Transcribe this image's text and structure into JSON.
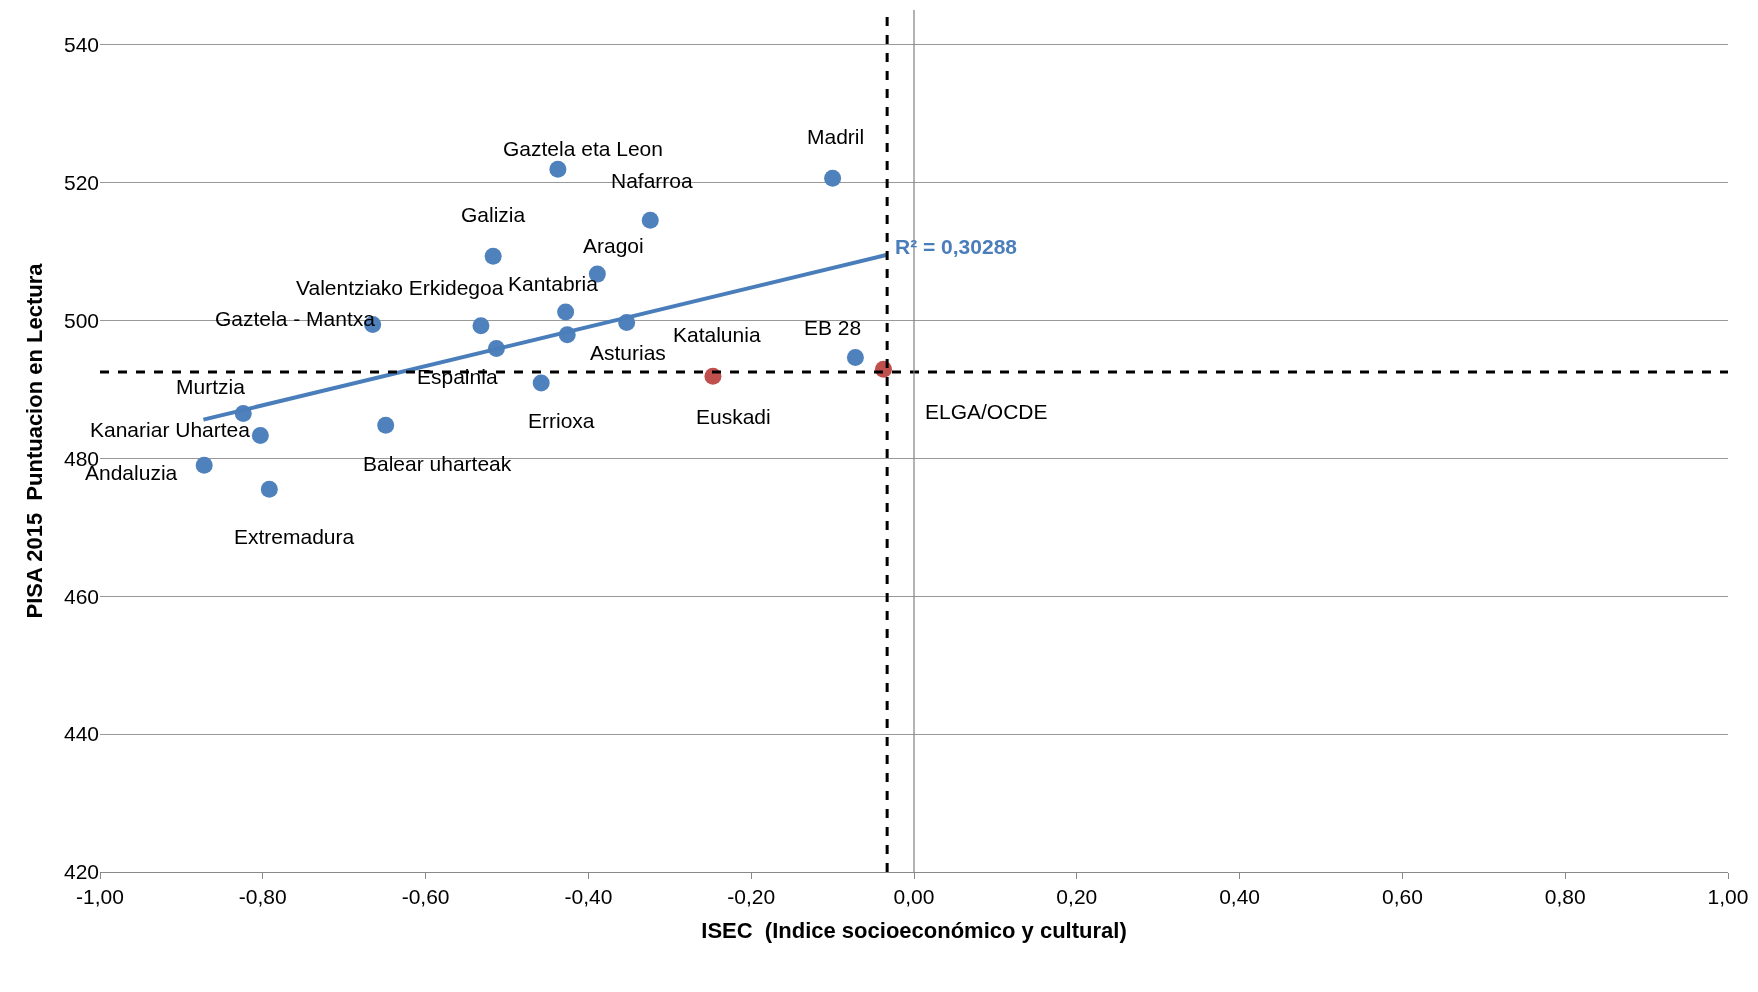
{
  "chart_data": {
    "type": "scatter",
    "xlabel": "ISEC  (Indice socioeconómico y cultural)",
    "ylabel": "PISA 2015  Puntuacion en Lectura",
    "xlim": [
      -1,
      1
    ],
    "xticks": [
      {
        "value": -1,
        "label": "-1,00"
      },
      {
        "value": -0.8,
        "label": "-0,80"
      },
      {
        "value": -0.6,
        "label": "-0,60"
      },
      {
        "value": -0.4,
        "label": "-0,40"
      },
      {
        "value": -0.2,
        "label": "-0,20"
      },
      {
        "value": 0,
        "label": "0,00"
      },
      {
        "value": 0.2,
        "label": "0,20"
      },
      {
        "value": 0.4,
        "label": "0,40"
      },
      {
        "value": 0.6,
        "label": "0,60"
      },
      {
        "value": 0.8,
        "label": "0,80"
      },
      {
        "value": 1,
        "label": "1,00"
      }
    ],
    "ylim": [
      420,
      545
    ],
    "yticks": [
      420,
      440,
      460,
      480,
      500,
      520,
      540
    ],
    "grid": "y",
    "marker": "circle",
    "series": [
      {
        "x": [
          -0.872,
          -0.792,
          -0.803,
          -0.824,
          -0.665,
          -0.649,
          -0.532,
          -0.513,
          -0.517,
          -0.4375,
          -0.458,
          -0.428,
          -0.426,
          -0.389,
          -0.324,
          -0.353,
          -0.247,
          -0.1,
          -0.072,
          -0.0375
        ],
        "values": [
          479.0,
          475.5,
          483.3,
          486.5,
          499.4,
          484.8,
          499.2,
          495.9,
          509.3,
          521.9,
          490.9,
          501.2,
          497.9,
          506.7,
          514.5,
          499.7,
          491.9,
          520.6,
          494.6,
          492.9
        ],
        "colors": [
          "#4f81bd",
          "#4f81bd",
          "#4f81bd",
          "#4f81bd",
          "#4f81bd",
          "#4f81bd",
          "#4f81bd",
          "#4f81bd",
          "#4f81bd",
          "#4f81bd",
          "#4f81bd",
          "#4f81bd",
          "#4f81bd",
          "#4f81bd",
          "#4f81bd",
          "#4f81bd",
          "#c0504d",
          "#4f81bd",
          "#4f81bd",
          "#c0504d"
        ]
      },
      {
        "type": "line",
        "x": [
          -0.873,
          -0.033
        ],
        "values": [
          485.6,
          509.5
        ],
        "color": "#4a7ebb",
        "marker": "none"
      }
    ],
    "ref_lines": [
      {
        "axis": "x",
        "value": -0.033,
        "color": "#000000",
        "line_style": "dashed"
      },
      {
        "axis": "y",
        "value": 492.5,
        "color": "#000000",
        "line_style": "dashed"
      },
      {
        "axis": "x",
        "value": 0,
        "color": "#808080",
        "line_style": "solid"
      }
    ],
    "annotations": [
      {
        "text": "Gaztela eta Leon",
        "x": -0.4375,
        "y": 521.9
      },
      {
        "text": "Madril",
        "x": -0.1,
        "y": 520.6
      },
      {
        "text": "Nafarroa",
        "x": -0.324,
        "y": 514.5
      },
      {
        "text": "Galizia",
        "x": -0.517,
        "y": 509.3
      },
      {
        "text": "Aragoi",
        "x": -0.389,
        "y": 506.7
      },
      {
        "text": "Valentziako Erkidegoa",
        "x": -0.532,
        "y": 499.2
      },
      {
        "text": "Kantabria",
        "x": -0.428,
        "y": 501.2
      },
      {
        "text": "Gaztela - Mantxa",
        "x": -0.665,
        "y": 499.4
      },
      {
        "text": "Katalunia",
        "x": -0.353,
        "y": 499.7
      },
      {
        "text": "EB 28",
        "x": -0.072,
        "y": 494.6
      },
      {
        "text": "Murtzia",
        "x": -0.824,
        "y": 486.5
      },
      {
        "text": "Espainia",
        "x": -0.513,
        "y": 495.9
      },
      {
        "text": "Asturias",
        "x": -0.426,
        "y": 497.9
      },
      {
        "text": "Kanariar Uhartea",
        "x": -0.803,
        "y": 483.3
      },
      {
        "text": "Errioxa",
        "x": -0.458,
        "y": 490.9
      },
      {
        "text": "Euskadi",
        "x": -0.247,
        "y": 491.9
      },
      {
        "text": "ELGA/OCDE",
        "x": -0.0375,
        "y": 492.9
      },
      {
        "text": "Balear uharteak",
        "x": -0.649,
        "y": 484.8
      },
      {
        "text": "Andaluzia",
        "x": -0.872,
        "y": 479.0
      },
      {
        "text": "Extremadura",
        "x": -0.792,
        "y": 475.5
      },
      {
        "text": "R² = 0,30288",
        "x": -0.033,
        "y": 509.5
      }
    ]
  }
}
